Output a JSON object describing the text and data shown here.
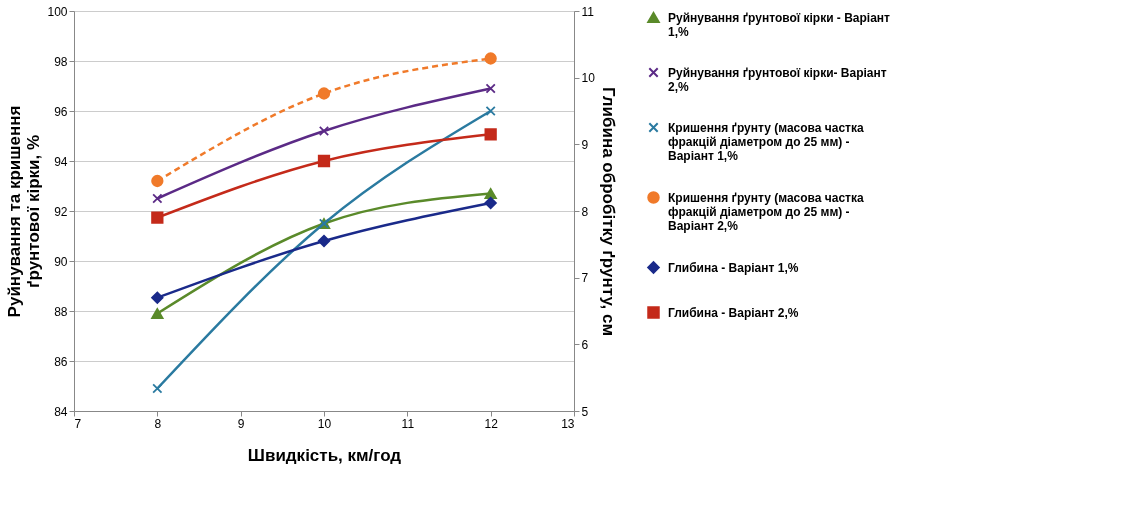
{
  "chart_data": {
    "type": "line",
    "xlabel": "Швидкість, км/год",
    "ylabel": "Руйнування та кришення ґрунтової кірки, %",
    "y2label": "Глибина обробітку ґрунту, см",
    "xlim": [
      7,
      13
    ],
    "xticks": [
      7,
      8,
      9,
      10,
      11,
      12,
      13
    ],
    "ylim": [
      84,
      100
    ],
    "yticks": [
      84,
      86,
      88,
      90,
      92,
      94,
      96,
      98,
      100
    ],
    "y2lim": [
      5,
      11
    ],
    "y2ticks": [
      5,
      6,
      7,
      8,
      9,
      10,
      11
    ],
    "grid": "y",
    "legend": "right",
    "x": [
      8,
      10,
      12
    ],
    "series": [
      {
        "name": "Руйнування ґрунтової кірки - Варіант 1,%",
        "color": "#5a8a2a",
        "marker": "triangle",
        "line_style": "solid",
        "values": [
          87.9,
          91.5,
          92.7
        ]
      },
      {
        "name": "Руйнування ґрунтової кірки- Варіант 2,%",
        "color": "#5b2a86",
        "marker": "cross",
        "line_style": "solid",
        "values": [
          92.5,
          95.2,
          96.9
        ]
      },
      {
        "name": "Кришення ґрунту (масова частка фракцій діаметром до 25 мм) - Варіант 1,%",
        "color": "#2a7aa0",
        "marker": "cross",
        "line_style": "solid",
        "values": [
          84.9,
          91.5,
          96.0
        ]
      },
      {
        "name": "Кришення ґрунту (масова частка фракцій діаметром до 25 мм) - Варіант 2,%",
        "color": "#f07a2a",
        "marker": "circle",
        "line_style": "dashed",
        "values": [
          93.2,
          96.7,
          98.1
        ]
      },
      {
        "name": "Глибина - Варіант 1,%",
        "color": "#1a2a8a",
        "marker": "diamond",
        "line_style": "solid",
        "axis": "y2",
        "values": [
          6.7,
          7.55,
          8.12
        ]
      },
      {
        "name": "Глибина - Варіант 2,%",
        "color": "#c42a1a",
        "marker": "square",
        "line_style": "solid",
        "axis": "y2",
        "values": [
          7.9,
          8.75,
          9.15
        ]
      }
    ]
  }
}
